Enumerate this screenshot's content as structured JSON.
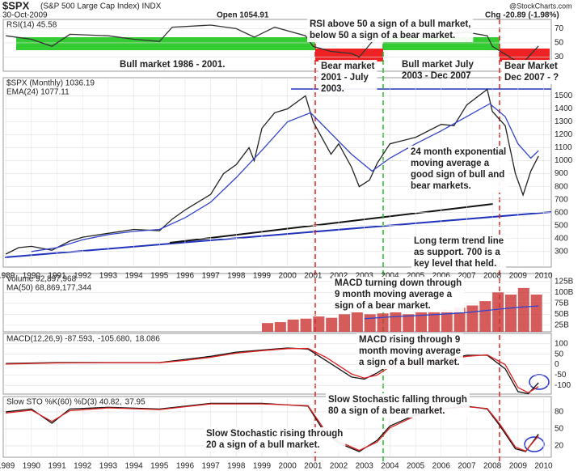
{
  "header": {
    "symbol": "$SPX",
    "name": "(S&P 500 Large Cap Index) INDX",
    "date": "30-Oct-2009",
    "open": "Open 1054.91",
    "change": "Chg -20.89 (-1.98%)",
    "credit": "@StockCharts.com"
  },
  "annotations": [
    {
      "lines": [
        "RSI above 50 a sign of a bull market,",
        "below 50 a sign of a bear market."
      ]
    },
    {
      "lines": [
        "Bull market 1986 - 2001."
      ]
    },
    {
      "lines": [
        "Bear market",
        "2001 - July",
        "2003."
      ]
    },
    {
      "lines": [
        "Bull market July",
        "2003 - Dec 2007"
      ]
    },
    {
      "lines": [
        "Bear Market",
        "Dec 2007 - ?"
      ]
    },
    {
      "lines": [
        "24 month exponential",
        "moving average a",
        "good sign of bull and",
        "bear markets."
      ]
    },
    {
      "lines": [
        "Long term trend line",
        "as support. 700 is a",
        "key level that held."
      ]
    },
    {
      "lines": [
        "MACD turning down through",
        "9 month moving average a",
        "sign of a bear market."
      ]
    },
    {
      "lines": [
        "MACD rising through 9",
        "month moving average",
        "a sign of a bull market."
      ]
    },
    {
      "lines": [
        "Slow Stochastic falling through",
        "80 a sign of a bear market."
      ]
    },
    {
      "lines": [
        "Slow Stochastic rising through",
        "20 a sign of a bull market."
      ]
    }
  ],
  "chart_data": [
    {
      "type": "line",
      "legend": [
        "RSI(14) 45.58"
      ],
      "xlim": [
        1988.9,
        2010.3
      ],
      "ylim": [
        10,
        83
      ],
      "yticks": [
        70,
        50,
        30
      ],
      "series": [
        {
          "name": "RSI",
          "color": "#333333",
          "x": [
            1989,
            1990,
            1990.8,
            1991.5,
            1993,
            1994,
            1995,
            1995.5,
            1997,
            1998,
            1998.7,
            1999.5,
            2000.7,
            2001,
            2001.7,
            2002.5,
            2002.8,
            2003.5,
            2004,
            2005,
            2006,
            2007,
            2007.8,
            2008,
            2008.9,
            2009.2,
            2009.8
          ],
          "values": [
            60,
            55,
            45,
            62,
            60,
            55,
            52,
            72,
            75,
            70,
            58,
            72,
            60,
            45,
            38,
            35,
            30,
            60,
            62,
            58,
            62,
            65,
            60,
            45,
            25,
            22,
            45.58
          ]
        }
      ]
    },
    {
      "type": "line",
      "legend": [
        "$SPX (Monthly) 1036.19",
        "EMA(24) 1077.11"
      ],
      "xlim": [
        1988.9,
        2010.3
      ],
      "ylim": [
        180,
        1640
      ],
      "yticks": [
        300,
        400,
        500,
        600,
        700,
        800,
        900,
        1000,
        1100,
        1200,
        1300,
        1400,
        1500
      ],
      "xticks": [
        1989,
        1990,
        1991,
        1992,
        1993,
        1994,
        1995,
        1996,
        1997,
        1998,
        1999,
        2000,
        2001,
        2002,
        2003,
        2004,
        2005,
        2006,
        2007,
        2008,
        2009,
        2010
      ],
      "series": [
        {
          "name": "$SPX",
          "color": "#222222",
          "x": [
            1989,
            1989.5,
            1990,
            1990.8,
            1991.5,
            1992,
            1993,
            1994,
            1995,
            1995.5,
            1996,
            1997,
            1997.5,
            1998,
            1998.5,
            1998.7,
            1999,
            1999.5,
            2000,
            2000.7,
            2001,
            2001.7,
            2002,
            2002.5,
            2002.8,
            2003.2,
            2003.5,
            2004,
            2005,
            2006,
            2006.5,
            2007,
            2007.8,
            2008,
            2008.5,
            2008.9,
            2009.2,
            2009.5,
            2009.8
          ],
          "values": [
            280,
            330,
            340,
            310,
            380,
            410,
            440,
            470,
            460,
            550,
            620,
            740,
            900,
            970,
            1100,
            1000,
            1250,
            1370,
            1400,
            1500,
            1300,
            1050,
            1130,
            950,
            800,
            850,
            980,
            1130,
            1180,
            1280,
            1270,
            1430,
            1550,
            1380,
            1270,
            900,
            735,
            920,
            1036.19
          ]
        },
        {
          "name": "EMA(24)",
          "color": "#3344cc",
          "x": [
            1990,
            1991,
            1992,
            1993,
            1994,
            1995,
            1996,
            1997,
            1998,
            1999,
            2000,
            2000.9,
            2001.5,
            2002.5,
            2003.3,
            2004,
            2005,
            2006,
            2007,
            2007.9,
            2008.5,
            2009,
            2009.5,
            2009.8
          ],
          "values": [
            300,
            330,
            390,
            430,
            455,
            470,
            560,
            680,
            870,
            1080,
            1300,
            1370,
            1250,
            1050,
            920,
            1020,
            1130,
            1230,
            1340,
            1440,
            1340,
            1130,
            1020,
            1077.11
          ]
        }
      ]
    },
    {
      "type": "bar",
      "legend": [
        "Volume 92,897,968",
        "MA(50) 68,869,177,344"
      ],
      "xlim": [
        1988.9,
        2010.3
      ],
      "ylim": [
        10,
        143
      ],
      "yticks": [
        {
          "value": 125,
          "label": "125B"
        },
        {
          "value": 100,
          "label": "100B"
        },
        {
          "value": 75,
          "label": "75B"
        },
        {
          "value": 50,
          "label": "50B"
        },
        {
          "value": 25,
          "label": "25B"
        }
      ],
      "series": [
        {
          "name": "Volume",
          "color": "#cc3333",
          "x": [
            1999,
            1999.5,
            2000,
            2000.5,
            2001,
            2001.5,
            2002,
            2002.5,
            2003,
            2003.5,
            2004,
            2004.5,
            2005,
            2005.5,
            2006,
            2006.5,
            2007,
            2007.5,
            2008,
            2008.5,
            2009,
            2009.5
          ],
          "values": [
            30,
            32,
            38,
            40,
            45,
            42,
            50,
            55,
            50,
            52,
            55,
            50,
            55,
            55,
            60,
            65,
            70,
            80,
            100,
            95,
            110,
            95
          ]
        },
        {
          "name": "MA(50)",
          "color": "#3344cc",
          "line": true,
          "x": [
            2003,
            2004,
            2005,
            2006,
            2007,
            2008,
            2009,
            2009.8
          ],
          "values": [
            40,
            44,
            47,
            50,
            54,
            60,
            66,
            68.9
          ]
        }
      ]
    },
    {
      "type": "line",
      "legend": [
        "MACD(12,26,9) -87.593,",
        "-105.680,",
        "18.086"
      ],
      "xlim": [
        1988.9,
        2010.3
      ],
      "ylim": [
        -142,
        150
      ],
      "yticks": [
        100,
        50,
        0,
        -50,
        -100
      ],
      "series": [
        {
          "name": "MACD",
          "color": "#111111",
          "x": [
            1989,
            1991,
            1993,
            1995,
            1996,
            1997,
            1998,
            1999,
            2000,
            2000.8,
            2001.5,
            2002.5,
            2003,
            2003.5,
            2004,
            2005,
            2006,
            2007,
            2007.8,
            2008.5,
            2009,
            2009.4,
            2009.8
          ],
          "values": [
            5,
            10,
            10,
            10,
            25,
            40,
            60,
            70,
            80,
            75,
            20,
            -60,
            -70,
            -40,
            0,
            10,
            20,
            45,
            45,
            -20,
            -130,
            -140,
            -87.593
          ]
        },
        {
          "name": "Signal",
          "color": "#dd2222",
          "x": [
            1989,
            1991,
            1993,
            1995,
            1996,
            1997,
            1998,
            1999,
            2000,
            2000.8,
            2001.5,
            2002.5,
            2003,
            2003.5,
            2004,
            2005,
            2006,
            2007,
            2007.8,
            2008.5,
            2009,
            2009.4,
            2009.8
          ],
          "values": [
            3,
            8,
            9,
            9,
            20,
            35,
            55,
            67,
            77,
            78,
            35,
            -45,
            -65,
            -50,
            -10,
            5,
            17,
            40,
            47,
            0,
            -110,
            -135,
            -105.68
          ]
        }
      ]
    },
    {
      "type": "line",
      "legend": [
        "Slow STO %K(60) %D(3) 40.82,",
        "37.95"
      ],
      "xlim": [
        1988.9,
        2010.3
      ],
      "ylim": [
        0,
        107
      ],
      "yticks": [
        80,
        50,
        20
      ],
      "xticks": [
        1989,
        1990,
        1991,
        1992,
        1993,
        1994,
        1995,
        1996,
        1997,
        1998,
        1999,
        2000,
        2001,
        2002,
        2003,
        2004,
        2005,
        2006,
        2007,
        2008,
        2009,
        2010
      ],
      "series": [
        {
          "name": "%K",
          "color": "#111111",
          "x": [
            1989,
            1990,
            1990.8,
            1991.5,
            1993,
            1995,
            1997,
            1999,
            2000.8,
            2001.5,
            2002,
            2002.8,
            2003.5,
            2004,
            2005,
            2006,
            2007,
            2007.8,
            2008.3,
            2008.9,
            2009.3,
            2009.8
          ],
          "values": [
            80,
            85,
            60,
            85,
            88,
            85,
            95,
            95,
            90,
            40,
            25,
            10,
            30,
            55,
            75,
            85,
            90,
            85,
            55,
            15,
            10,
            40.82
          ]
        },
        {
          "name": "%D",
          "color": "#dd2222",
          "x": [
            1989,
            1990,
            1990.8,
            1991.5,
            1993,
            1995,
            1997,
            1999,
            2000.8,
            2001.5,
            2002,
            2002.8,
            2003.5,
            2004,
            2005,
            2006,
            2007,
            2007.8,
            2008.3,
            2008.9,
            2009.3,
            2009.8
          ],
          "values": [
            78,
            83,
            63,
            82,
            87,
            84,
            94,
            94,
            91,
            45,
            28,
            12,
            27,
            52,
            73,
            84,
            89,
            86,
            58,
            18,
            11,
            37.95
          ]
        }
      ]
    }
  ]
}
